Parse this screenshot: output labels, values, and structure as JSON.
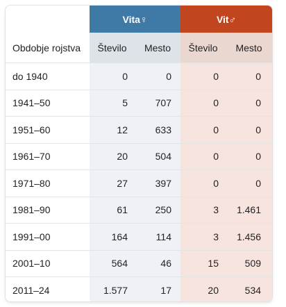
{
  "table": {
    "groups": {
      "female": {
        "label": "Vita",
        "symbol": "♀",
        "color": "#3f79a5"
      },
      "male": {
        "label": "Vit",
        "symbol": "♂",
        "color": "#c1461f"
      }
    },
    "columns": {
      "period": "Obdobje rojstva",
      "female_count": "Število",
      "female_rank": "Mesto",
      "male_count": "Število",
      "male_rank": "Mesto"
    },
    "rows": [
      {
        "period": "do 1940",
        "female_count": "0",
        "female_rank": "0",
        "male_count": "0",
        "male_rank": "0"
      },
      {
        "period": "1941–50",
        "female_count": "5",
        "female_rank": "707",
        "male_count": "0",
        "male_rank": "0"
      },
      {
        "period": "1951–60",
        "female_count": "12",
        "female_rank": "633",
        "male_count": "0",
        "male_rank": "0"
      },
      {
        "period": "1961–70",
        "female_count": "20",
        "female_rank": "504",
        "male_count": "0",
        "male_rank": "0"
      },
      {
        "period": "1971–80",
        "female_count": "27",
        "female_rank": "397",
        "male_count": "0",
        "male_rank": "0"
      },
      {
        "period": "1981–90",
        "female_count": "61",
        "female_rank": "250",
        "male_count": "3",
        "male_rank": "1.461"
      },
      {
        "period": "1991–00",
        "female_count": "164",
        "female_rank": "114",
        "male_count": "3",
        "male_rank": "1.456"
      },
      {
        "period": "2001–10",
        "female_count": "564",
        "female_rank": "46",
        "male_count": "15",
        "male_rank": "509"
      },
      {
        "period": "2011–24",
        "female_count": "1.577",
        "female_rank": "17",
        "male_count": "20",
        "male_rank": "534"
      }
    ]
  }
}
